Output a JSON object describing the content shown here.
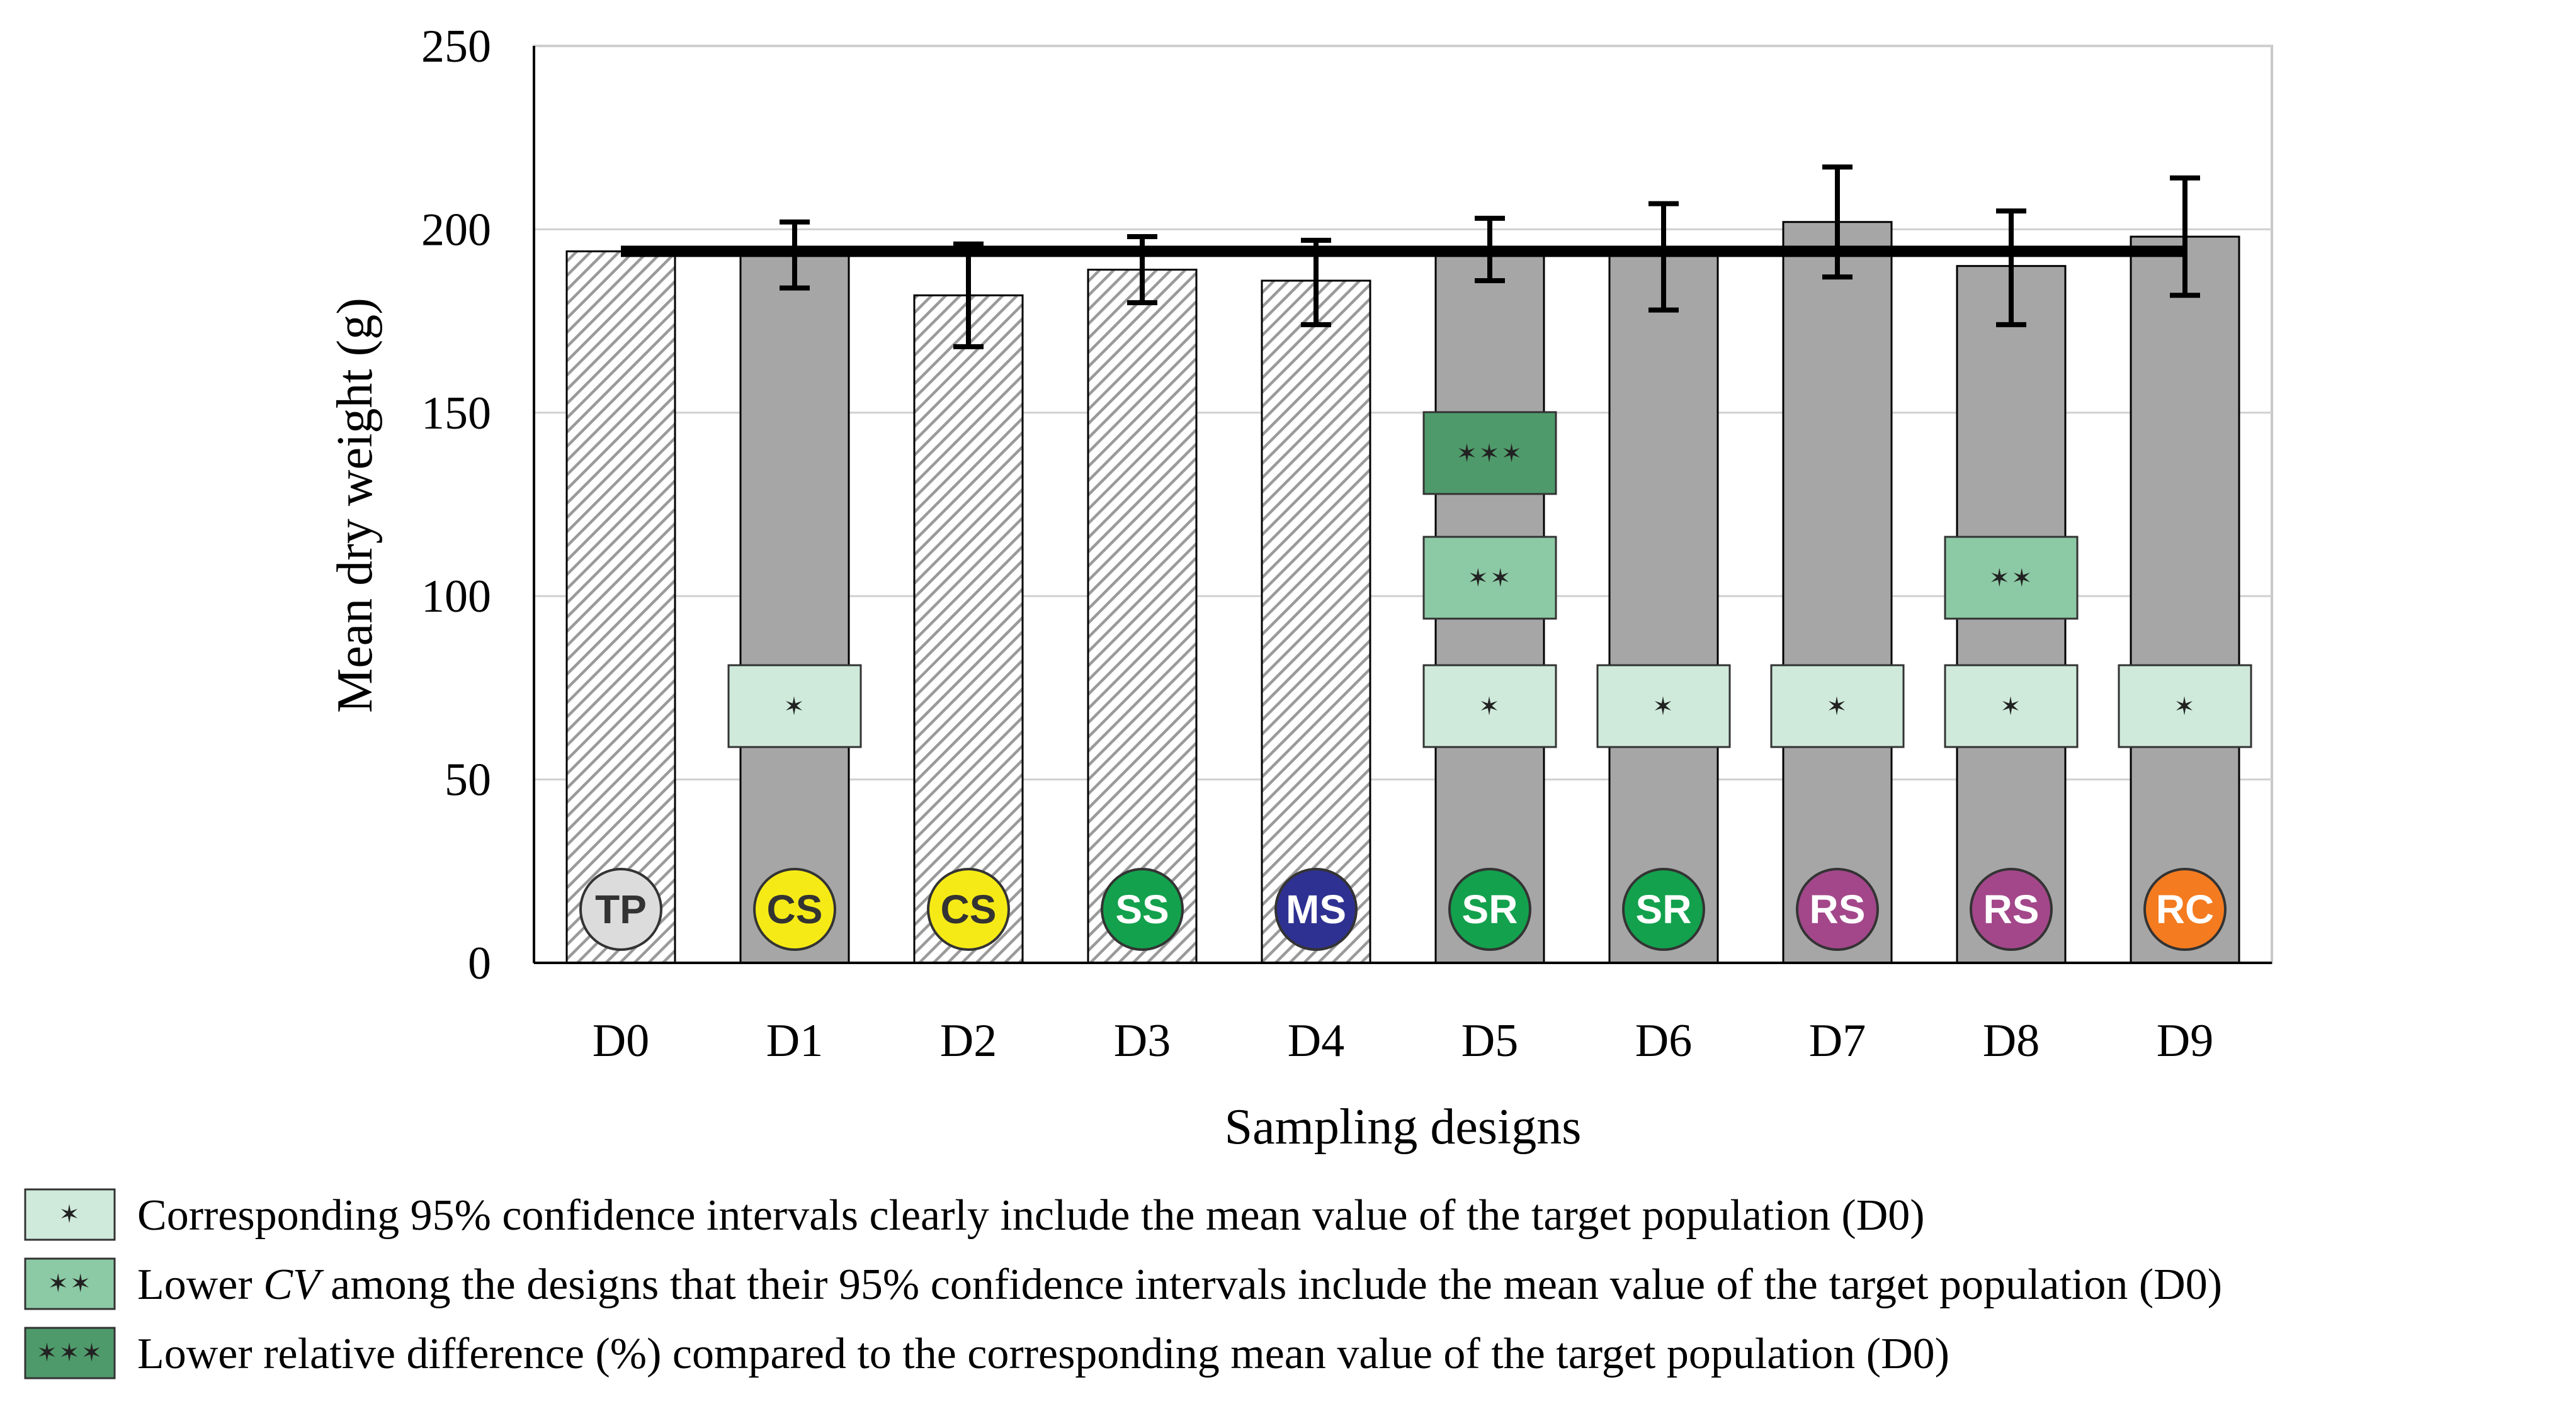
{
  "chart_data": {
    "type": "bar",
    "ylabel": "Mean dry weight (g)",
    "xlabel": "Sampling designs",
    "ylim": [
      0,
      250
    ],
    "yticks": [
      0,
      50,
      100,
      150,
      200,
      250
    ],
    "reference_line": {
      "label": "Mean value of the target population (D0)",
      "value": 194
    },
    "categories": [
      "D0",
      "D1",
      "D2",
      "D3",
      "D4",
      "D5",
      "D6",
      "D7",
      "D8",
      "D9"
    ],
    "bars": [
      {
        "category": "D0",
        "value": 194,
        "err_low": null,
        "err_high": null,
        "pattern": "hatched",
        "badge": "TP",
        "badge_color": "#dcdcdc",
        "badge_text_color": "#333333",
        "markers": []
      },
      {
        "category": "D1",
        "value": 194,
        "err_low": 184,
        "err_high": 202,
        "pattern": "solid",
        "badge": "CS",
        "badge_color": "#f6ea16",
        "badge_text_color": "#333333",
        "markers": [
          "*"
        ]
      },
      {
        "category": "D2",
        "value": 182,
        "err_low": 168,
        "err_high": 196,
        "pattern": "hatched",
        "badge": "CS",
        "badge_color": "#f6ea16",
        "badge_text_color": "#333333",
        "markers": []
      },
      {
        "category": "D3",
        "value": 189,
        "err_low": 180,
        "err_high": 198,
        "pattern": "hatched",
        "badge": "SS",
        "badge_color": "#13a14d",
        "badge_text_color": "#ffffff",
        "markers": []
      },
      {
        "category": "D4",
        "value": 186,
        "err_low": 174,
        "err_high": 197,
        "pattern": "hatched",
        "badge": "MS",
        "badge_color": "#2e3191",
        "badge_text_color": "#ffffff",
        "markers": []
      },
      {
        "category": "D5",
        "value": 194,
        "err_low": 186,
        "err_high": 203,
        "pattern": "solid",
        "badge": "SR",
        "badge_color": "#13a14d",
        "badge_text_color": "#ffffff",
        "markers": [
          "*",
          "**",
          "***"
        ]
      },
      {
        "category": "D6",
        "value": 194,
        "err_low": 178,
        "err_high": 207,
        "pattern": "solid",
        "badge": "SR",
        "badge_color": "#13a14d",
        "badge_text_color": "#ffffff",
        "markers": [
          "*"
        ]
      },
      {
        "category": "D7",
        "value": 202,
        "err_low": 187,
        "err_high": 217,
        "pattern": "solid",
        "badge": "RS",
        "badge_color": "#a3478a",
        "badge_text_color": "#ffffff",
        "markers": [
          "*"
        ]
      },
      {
        "category": "D8",
        "value": 190,
        "err_low": 174,
        "err_high": 205,
        "pattern": "solid",
        "badge": "RS",
        "badge_color": "#a3478a",
        "badge_text_color": "#ffffff",
        "markers": [
          "*",
          "**"
        ]
      },
      {
        "category": "D9",
        "value": 198,
        "err_low": 182,
        "err_high": 214,
        "pattern": "solid",
        "badge": "RC",
        "badge_color": "#f47b20",
        "badge_text_color": "#ffffff",
        "markers": [
          "*"
        ]
      }
    ],
    "marker_styles": {
      "*": {
        "symbols": "✶",
        "color": "#cfeadb",
        "y_center": 70
      },
      "**": {
        "symbols": "✶✶",
        "color": "#8ccaa5",
        "y_center": 105
      },
      "***": {
        "symbols": "✶✶✶",
        "color": "#4f9a6b",
        "y_center": 139
      }
    },
    "legend": [
      {
        "key": "*",
        "parts": [
          {
            "text": "Corresponding 95% confidence intervals clearly include the mean value of the target population (D0)",
            "italic": false
          }
        ]
      },
      {
        "key": "**",
        "parts": [
          {
            "text": "Lower ",
            "italic": false
          },
          {
            "text": "CV",
            "italic": true
          },
          {
            "text": " among the designs that their 95% confidence intervals include the mean value of the target population (D0)",
            "italic": false
          }
        ]
      },
      {
        "key": "***",
        "parts": [
          {
            "text": "Lower relative difference (%) compared to the corresponding mean value of the target population (D0)",
            "italic": false
          }
        ]
      }
    ]
  }
}
